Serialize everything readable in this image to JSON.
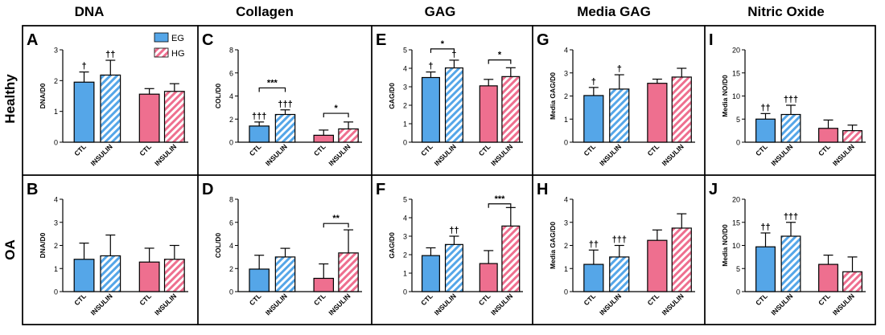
{
  "columns": [
    "DNA",
    "Collagen",
    "GAG",
    "Media GAG",
    "Nitric Oxide"
  ],
  "rows": [
    "Healthy",
    "OA"
  ],
  "legend": [
    {
      "name": "EG",
      "color": "#55a6e8"
    },
    {
      "name": "HG",
      "color": "#ee6f8f"
    }
  ],
  "colors": {
    "eg": "#55a6e8",
    "hg": "#ee6f8f",
    "frame": "#000000"
  },
  "chart_data": [
    {
      "type": "bar",
      "panel": "A",
      "title": "DNA",
      "condition": "Healthy",
      "ylabel": "DNA/D0",
      "ylim": [
        0,
        3
      ],
      "yticks": [
        0,
        1,
        2,
        3
      ],
      "categories": [
        "CTL",
        "INSULIN",
        "CTL",
        "INSULIN"
      ],
      "groups": [
        "EG",
        "EG",
        "HG",
        "HG"
      ],
      "patterned": [
        false,
        true,
        false,
        true
      ],
      "values": [
        1.95,
        2.18,
        1.56,
        1.65
      ],
      "errors": [
        0.33,
        0.48,
        0.18,
        0.25
      ],
      "marks": [
        "†",
        "††",
        "",
        ""
      ],
      "brackets": []
    },
    {
      "type": "bar",
      "panel": "C",
      "title": "Collagen",
      "condition": "Healthy",
      "ylabel": "COL/D0",
      "ylim": [
        0,
        8
      ],
      "yticks": [
        0,
        2,
        4,
        6,
        8
      ],
      "categories": [
        "CTL",
        "INSULIN",
        "CTL",
        "INSULIN"
      ],
      "groups": [
        "EG",
        "EG",
        "HG",
        "HG"
      ],
      "patterned": [
        false,
        true,
        false,
        true
      ],
      "values": [
        1.4,
        2.4,
        0.6,
        1.15
      ],
      "errors": [
        0.35,
        0.4,
        0.45,
        0.6
      ],
      "marks": [
        "†††",
        "†††",
        "",
        ""
      ],
      "brackets": [
        {
          "from": 0,
          "to": 1,
          "label": "***",
          "y": 4.7
        },
        {
          "from": 2,
          "to": 3,
          "label": "*",
          "y": 2.5
        }
      ]
    },
    {
      "type": "bar",
      "panel": "E",
      "title": "GAG",
      "condition": "Healthy",
      "ylabel": "GAG/D0",
      "ylim": [
        0,
        5
      ],
      "yticks": [
        0,
        1,
        2,
        3,
        4,
        5
      ],
      "categories": [
        "CTL",
        "INSULIN",
        "CTL",
        "INSULIN"
      ],
      "groups": [
        "EG",
        "EG",
        "HG",
        "HG"
      ],
      "patterned": [
        false,
        true,
        false,
        true
      ],
      "values": [
        3.5,
        4.02,
        3.05,
        3.55
      ],
      "errors": [
        0.3,
        0.42,
        0.35,
        0.48
      ],
      "marks": [
        "†",
        "†",
        "",
        ""
      ],
      "brackets": [
        {
          "from": 0,
          "to": 1,
          "label": "*",
          "y": 5.05
        },
        {
          "from": 2,
          "to": 3,
          "label": "*",
          "y": 4.45
        }
      ]
    },
    {
      "type": "bar",
      "panel": "G",
      "title": "Media GAG",
      "condition": "Healthy",
      "ylabel": "Media GAG/D0",
      "ylim": [
        0,
        4
      ],
      "yticks": [
        0,
        1,
        2,
        3,
        4
      ],
      "categories": [
        "CTL",
        "INSULIN",
        "CTL",
        "INSULIN"
      ],
      "groups": [
        "EG",
        "EG",
        "HG",
        "HG"
      ],
      "patterned": [
        false,
        true,
        false,
        true
      ],
      "values": [
        2.02,
        2.3,
        2.55,
        2.82
      ],
      "errors": [
        0.35,
        0.62,
        0.18,
        0.38
      ],
      "marks": [
        "†",
        "†",
        "",
        ""
      ],
      "brackets": []
    },
    {
      "type": "bar",
      "panel": "I",
      "title": "Nitric Oxide",
      "condition": "Healthy",
      "ylabel": "Media NO/D0",
      "ylim": [
        0,
        20
      ],
      "yticks": [
        0,
        5,
        10,
        15,
        20
      ],
      "categories": [
        "CTL",
        "INSULIN",
        "CTL",
        "INSULIN"
      ],
      "groups": [
        "EG",
        "EG",
        "HG",
        "HG"
      ],
      "patterned": [
        false,
        true,
        false,
        true
      ],
      "values": [
        5.0,
        6.0,
        3.0,
        2.5
      ],
      "errors": [
        1.2,
        2.0,
        1.8,
        1.2
      ],
      "marks": [
        "††",
        "†††",
        "",
        ""
      ],
      "brackets": []
    },
    {
      "type": "bar",
      "panel": "B",
      "title": "DNA",
      "condition": "OA",
      "ylabel": "DNA/D0",
      "ylim": [
        0,
        4
      ],
      "yticks": [
        0,
        1,
        2,
        3,
        4
      ],
      "categories": [
        "CTL",
        "INSULIN",
        "CTL",
        "INSULIN"
      ],
      "groups": [
        "EG",
        "EG",
        "HG",
        "HG"
      ],
      "patterned": [
        false,
        true,
        false,
        true
      ],
      "values": [
        1.4,
        1.55,
        1.28,
        1.4
      ],
      "errors": [
        0.7,
        0.9,
        0.6,
        0.6
      ],
      "marks": [
        "",
        "",
        "",
        ""
      ],
      "brackets": []
    },
    {
      "type": "bar",
      "panel": "D",
      "title": "Collagen",
      "condition": "OA",
      "ylabel": "COL/D0",
      "ylim": [
        0,
        8
      ],
      "yticks": [
        0,
        2,
        4,
        6,
        8
      ],
      "categories": [
        "CTL",
        "INSULIN",
        "CTL",
        "INSULIN"
      ],
      "groups": [
        "EG",
        "EG",
        "HG",
        "HG"
      ],
      "patterned": [
        false,
        true,
        false,
        true
      ],
      "values": [
        1.95,
        3.0,
        1.15,
        3.35
      ],
      "errors": [
        1.2,
        0.75,
        1.25,
        2.0
      ],
      "marks": [
        "",
        "",
        "",
        ""
      ],
      "brackets": [
        {
          "from": 2,
          "to": 3,
          "label": "**",
          "y": 5.9
        }
      ]
    },
    {
      "type": "bar",
      "panel": "F",
      "title": "GAG",
      "condition": "OA",
      "ylabel": "GAG/D0",
      "ylim": [
        0,
        5
      ],
      "yticks": [
        0,
        1,
        2,
        3,
        4,
        5
      ],
      "categories": [
        "CTL",
        "INSULIN",
        "CTL",
        "INSULIN"
      ],
      "groups": [
        "EG",
        "EG",
        "HG",
        "HG"
      ],
      "patterned": [
        false,
        true,
        false,
        true
      ],
      "values": [
        1.95,
        2.55,
        1.52,
        3.55
      ],
      "errors": [
        0.42,
        0.45,
        0.7,
        1.0
      ],
      "marks": [
        "",
        "††",
        "",
        ""
      ],
      "brackets": [
        {
          "from": 2,
          "to": 3,
          "label": "***",
          "y": 4.75
        }
      ]
    },
    {
      "type": "bar",
      "panel": "H",
      "title": "Media GAG",
      "condition": "OA",
      "ylabel": "Media GAG/D0",
      "ylim": [
        0,
        4
      ],
      "yticks": [
        0,
        1,
        2,
        3,
        4
      ],
      "categories": [
        "CTL",
        "INSULIN",
        "CTL",
        "INSULIN"
      ],
      "groups": [
        "EG",
        "EG",
        "HG",
        "HG"
      ],
      "patterned": [
        false,
        true,
        false,
        true
      ],
      "values": [
        1.18,
        1.5,
        2.22,
        2.75
      ],
      "errors": [
        0.62,
        0.5,
        0.45,
        0.62
      ],
      "marks": [
        "††",
        "†††",
        "",
        ""
      ],
      "brackets": []
    },
    {
      "type": "bar",
      "panel": "J",
      "title": "Nitric Oxide",
      "condition": "OA",
      "ylabel": "Media NO/D0",
      "ylim": [
        0,
        20
      ],
      "yticks": [
        0,
        5,
        10,
        15,
        20
      ],
      "categories": [
        "CTL",
        "INSULIN",
        "CTL",
        "INSULIN"
      ],
      "groups": [
        "EG",
        "EG",
        "HG",
        "HG"
      ],
      "patterned": [
        false,
        true,
        false,
        true
      ],
      "values": [
        9.7,
        12.0,
        5.9,
        4.3
      ],
      "errors": [
        3.0,
        3.0,
        2.0,
        3.2
      ],
      "marks": [
        "††",
        "†††",
        "",
        ""
      ],
      "brackets": []
    }
  ]
}
